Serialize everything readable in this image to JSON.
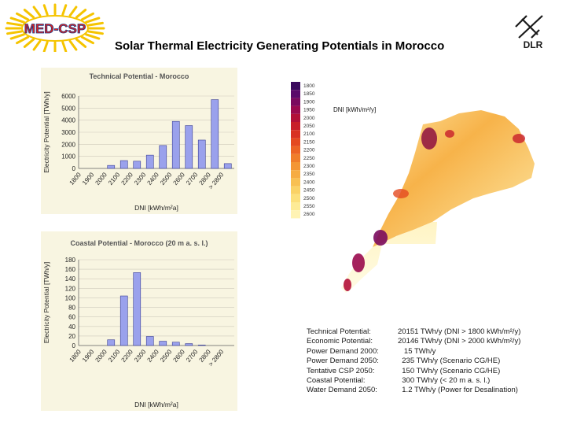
{
  "logo": {
    "text": "MED-CSP"
  },
  "dlr": {
    "text": "DLR"
  },
  "title": "Solar Thermal Electricity Generating Potentials in Morocco",
  "colors": {
    "panel_bg": "#f8f5e1",
    "bar": "#9aa1ec",
    "bar_stroke": "#3a3f95",
    "logo_sun": "#f5c400",
    "logo_red": "#e2231a",
    "logo_text_blue": "#1b3a8a"
  },
  "chart_data": [
    {
      "type": "bar",
      "title": "Technical Potential - Morocco",
      "xlabel": "DNI [kWh/m²a]",
      "ylabel": "Electricity Potential [TWh/y]",
      "categories": [
        "1800",
        "1900",
        "2000",
        "2100",
        "2200",
        "2300",
        "2400",
        "2500",
        "2600",
        "2700",
        "2800",
        "> 2800"
      ],
      "values": [
        0,
        0,
        250,
        650,
        600,
        1100,
        1900,
        3900,
        3550,
        2350,
        5700,
        400
      ],
      "ylim": [
        0,
        6000
      ],
      "yticks": [
        0,
        1000,
        2000,
        3000,
        4000,
        5000,
        6000
      ],
      "grid": true
    },
    {
      "type": "bar",
      "title": "Coastal Potential - Morocco (20 m a. s. l.)",
      "xlabel": "DNI [kWh/m²a]",
      "ylabel": "Electricity Potential [TWh/y]",
      "categories": [
        "1800",
        "1900",
        "2000",
        "2100",
        "2200",
        "2300",
        "2400",
        "2500",
        "2600",
        "2700",
        "2800",
        "> 2800"
      ],
      "values": [
        0,
        0,
        12,
        104,
        153,
        19,
        9,
        7,
        4,
        1,
        0,
        0
      ],
      "ylim": [
        0,
        180
      ],
      "yticks": [
        0,
        20,
        40,
        60,
        80,
        100,
        120,
        140,
        160,
        180
      ],
      "grid": true
    }
  ],
  "map": {
    "legend_title": "DNI [kWh/m²/y]",
    "legend_labels": [
      "1800",
      "1850",
      "1900",
      "1950",
      "2000",
      "2050",
      "2100",
      "2150",
      "2200",
      "2250",
      "2300",
      "2350",
      "2400",
      "2450",
      "2500",
      "2550",
      "2600"
    ],
    "legend_colors": [
      "#3b0a5e",
      "#5a0a6a",
      "#7a0a5e",
      "#9a0a4e",
      "#b21038",
      "#c81e2a",
      "#d83222",
      "#e44a20",
      "#ec6424",
      "#f07e2a",
      "#f49634",
      "#f6ac42",
      "#f8c052",
      "#fad266",
      "#fce07c",
      "#fdeb96",
      "#fff3b4"
    ]
  },
  "stats": [
    {
      "label": "Technical Potential:",
      "value": "20151 TWh/y (DNI > 1800 kWh/m²/y)"
    },
    {
      "label": "Economic Potential:",
      "value": "20146 TWh/y (DNI > 2000 kWh/m²/y)"
    },
    {
      "label": "Power Demand 2000:",
      "value": "   15 TWh/y"
    },
    {
      "label": "Power Demand 2050:",
      "value": "  235 TWh/y (Scenario CG/HE)"
    },
    {
      "label": "Tentative CSP 2050:",
      "value": "  150 TWh/y (Scenario CG/HE)"
    },
    {
      "label": "Coastal Potential:",
      "value": "  300 TWh/y (< 20 m a. s. l.)"
    },
    {
      "label": "Water Demand 2050:",
      "value": "  1.2 TWh/y (Power for Desalination)"
    }
  ]
}
